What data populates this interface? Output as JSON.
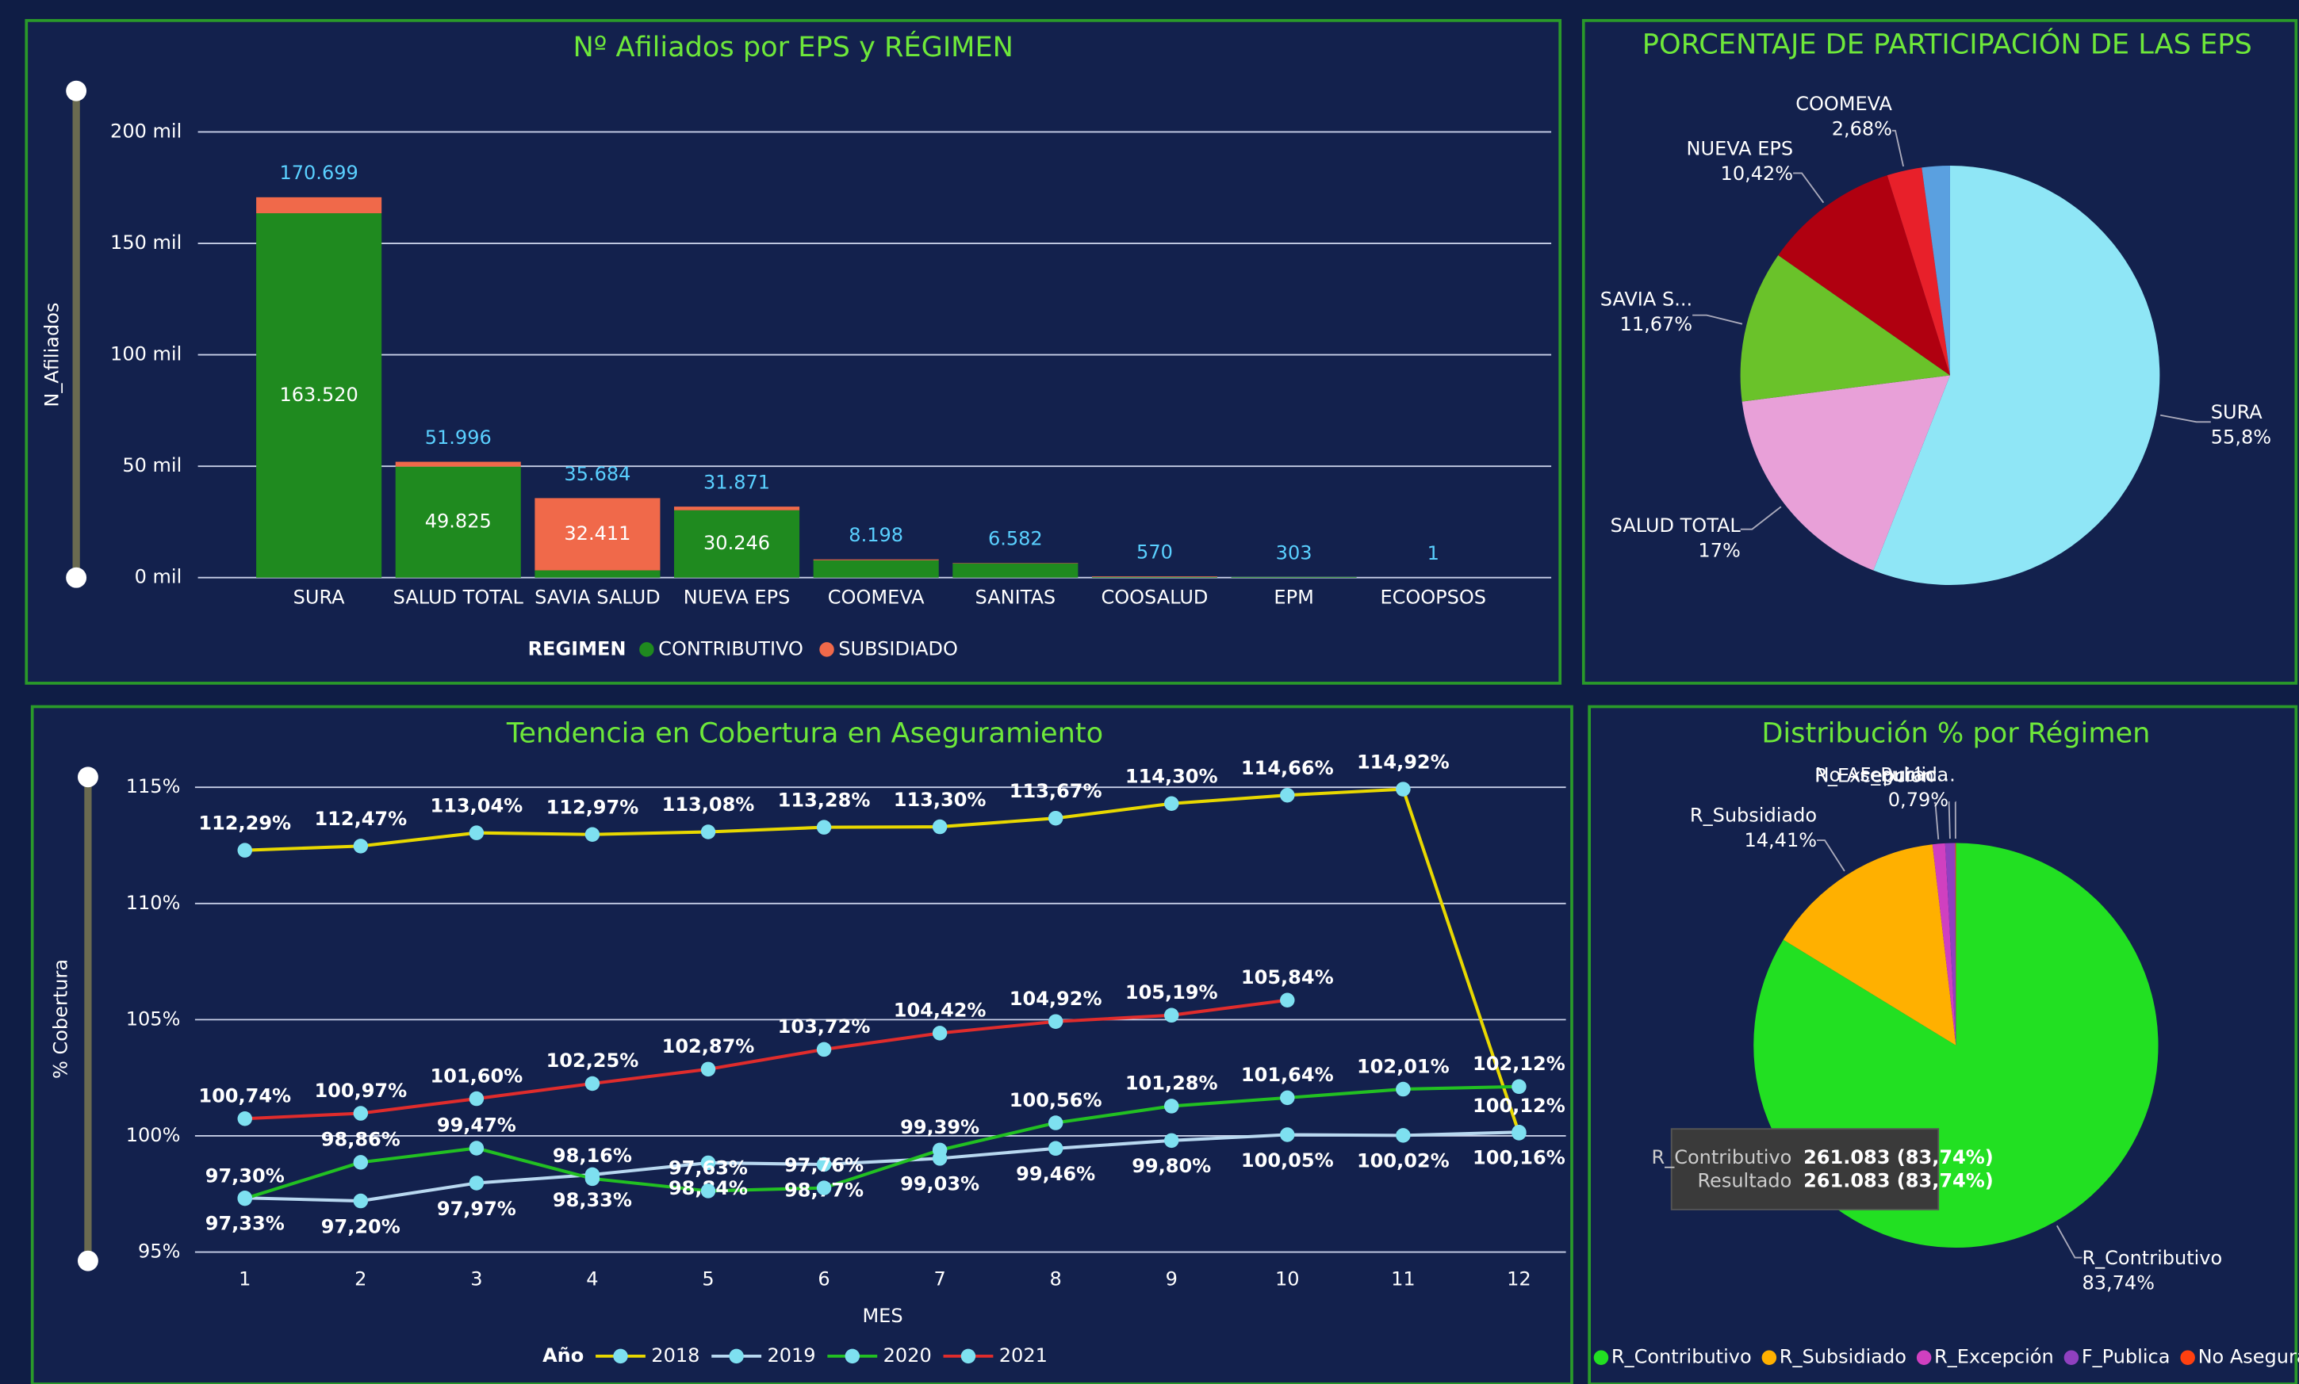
{
  "chart_data": [
    {
      "type": "bar",
      "title": "Nº Afiliados por EPS y RÉGIMEN",
      "y_label": "N_Afiliados",
      "legend_title": "REGIMEN",
      "categories": [
        "SURA",
        "SALUD TOTAL",
        "SAVIA SALUD",
        "NUEVA EPS",
        "COOMEVA",
        "SANITAS",
        "COOSALUD",
        "EPM",
        "ECOOPSOS"
      ],
      "series": [
        {
          "name": "CONTRIBUTIVO",
          "color": "#1f8a1f",
          "values": [
            163520,
            49825,
            3273,
            30246,
            7800,
            6400,
            300,
            303,
            1
          ],
          "value_labels": [
            "163.520",
            "49.825",
            null,
            "30.246",
            null,
            null,
            null,
            null,
            null
          ]
        },
        {
          "name": "SUBSIDIADO",
          "color": "#f0694a",
          "values": [
            7179,
            2171,
            32411,
            1625,
            398,
            182,
            270,
            0,
            0
          ],
          "value_labels": [
            null,
            null,
            "32.411",
            null,
            null,
            null,
            null,
            null,
            null
          ]
        }
      ],
      "totals": [
        170699,
        51996,
        35684,
        31871,
        8198,
        6582,
        570,
        303,
        1
      ],
      "total_labels": [
        "170.699",
        "51.996",
        "35.684",
        "31.871",
        "8.198",
        "6.582",
        "570",
        "303",
        "1"
      ],
      "ylim": [
        0,
        200000
      ],
      "yticks": [
        {
          "value": 0,
          "label": "0 mil"
        },
        {
          "value": 50000,
          "label": "50 mil"
        },
        {
          "value": 100000,
          "label": "100 mil"
        },
        {
          "value": 150000,
          "label": "150 mil"
        },
        {
          "value": 200000,
          "label": "200 mil"
        }
      ],
      "grid": true
    },
    {
      "type": "pie",
      "title": "PORCENTAJE DE PARTICIPACIÓN DE LAS EPS",
      "categories": [
        "SURA",
        "SALUD TOTAL",
        "SAVIA S...",
        "NUEVA EPS",
        "COOMEVA",
        null
      ],
      "values": [
        55.8,
        17,
        11.67,
        10.42,
        2.68,
        2.15
      ],
      "value_labels": [
        "55,8%",
        "17%",
        "11,67%",
        "10,42%",
        "2,68%",
        null
      ],
      "colors": [
        "#8fe6f6",
        "#e8a0d8",
        "#6ac22a",
        "#b00010",
        "#e8202a",
        "#5aa0e0"
      ]
    },
    {
      "type": "line",
      "title": "Tendencia en Cobertura en Aseguramiento",
      "x_label": "MES",
      "y_label": "% Cobertura",
      "legend_title": "Año",
      "x": [
        1,
        2,
        3,
        4,
        5,
        6,
        7,
        8,
        9,
        10,
        11,
        12
      ],
      "xlim": [
        1,
        12
      ],
      "xticks": [
        1,
        2,
        3,
        4,
        5,
        6,
        7,
        8,
        9,
        10,
        11,
        12
      ],
      "ylim": [
        95,
        115
      ],
      "yticks": [
        {
          "value": 95,
          "label": "95%"
        },
        {
          "value": 100,
          "label": "100%"
        },
        {
          "value": 105,
          "label": "105%"
        },
        {
          "value": 110,
          "label": "110%"
        },
        {
          "value": 115,
          "label": "115%"
        }
      ],
      "grid": true,
      "series": [
        {
          "name": "2018",
          "color": "#e8d800",
          "values": [
            112.29,
            112.47,
            113.04,
            112.97,
            113.08,
            113.28,
            113.3,
            113.67,
            114.3,
            114.66,
            114.92,
            100.12
          ],
          "value_labels": [
            "112,29%",
            "112,47%",
            "113,04%",
            "112,97%",
            "113,08%",
            "113,28%",
            "113,30%",
            "113,67%",
            "114,30%",
            "114,66%",
            "114,92%",
            "100,12%"
          ]
        },
        {
          "name": "2019",
          "color": "#b8d8f0",
          "values": [
            97.33,
            97.2,
            97.97,
            98.33,
            98.84,
            98.77,
            99.03,
            99.46,
            99.8,
            100.05,
            100.02,
            100.16
          ],
          "value_labels": [
            "97,33%",
            "97,20%",
            "97,97%",
            "98,33%",
            "98,84%",
            "98,77%",
            "99,03%",
            "99,46%",
            "99,80%",
            "100,05%",
            "100,02%",
            "100,16%"
          ]
        },
        {
          "name": "2020",
          "color": "#22c022",
          "values": [
            97.3,
            98.86,
            99.47,
            98.16,
            97.63,
            97.76,
            99.39,
            100.56,
            101.28,
            101.64,
            102.01,
            102.12
          ],
          "value_labels": [
            "97,30%",
            "98,86%",
            "99,47%",
            "98,16%",
            "97,63%",
            "97,76%",
            "99,39%",
            "100,56%",
            "101,28%",
            "101,64%",
            "102,01%",
            "102,12%"
          ]
        },
        {
          "name": "2021",
          "color": "#e02c2c",
          "values": [
            100.74,
            100.97,
            101.6,
            102.25,
            102.87,
            103.72,
            104.42,
            104.92,
            105.19,
            105.84,
            null,
            null
          ],
          "value_labels": [
            "100,74%",
            "100,97%",
            "101,60%",
            "102,25%",
            "102,87%",
            "103,72%",
            "104,42%",
            "104,92%",
            "105,19%",
            "105,84%",
            null,
            null
          ]
        }
      ]
    },
    {
      "type": "pie",
      "title": "Distribución % por Régimen",
      "categories": [
        "R_Contributivo",
        "R_Subsidiado",
        "R_Excepción",
        "F_Publica",
        "No Asegurad..."
      ],
      "values": [
        83.74,
        14.41,
        1.0,
        0.79,
        0.06
      ],
      "value_labels": [
        "83,74%",
        "14,41%",
        null,
        "0,79%",
        null
      ],
      "colors": [
        "#22e022",
        "#ffb000",
        "#d040c0",
        "#9040c0",
        "#ff4010"
      ],
      "legend": true,
      "tooltip": [
        [
          "R_Contributivo",
          "261.083 (83,74%)"
        ],
        [
          "Resultado",
          "261.083 (83,74%)"
        ]
      ]
    }
  ]
}
